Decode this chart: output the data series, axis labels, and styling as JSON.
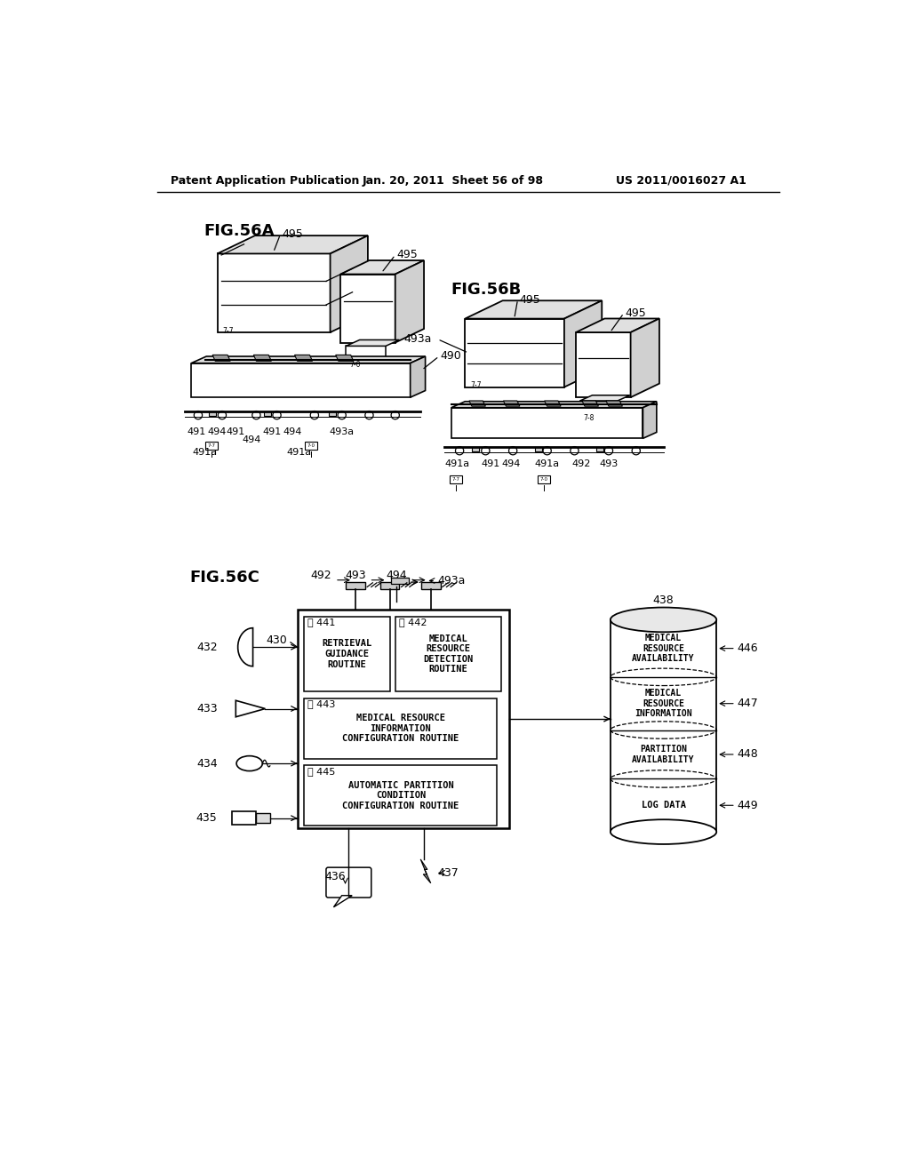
{
  "header_left": "Patent Application Publication",
  "header_center": "Jan. 20, 2011  Sheet 56 of 98",
  "header_right": "US 2011/0016027 A1",
  "fig56a_label": "FIG.56A",
  "fig56b_label": "FIG.56B",
  "fig56c_label": "FIG.56C",
  "bg_color": "#ffffff",
  "line_color": "#000000"
}
